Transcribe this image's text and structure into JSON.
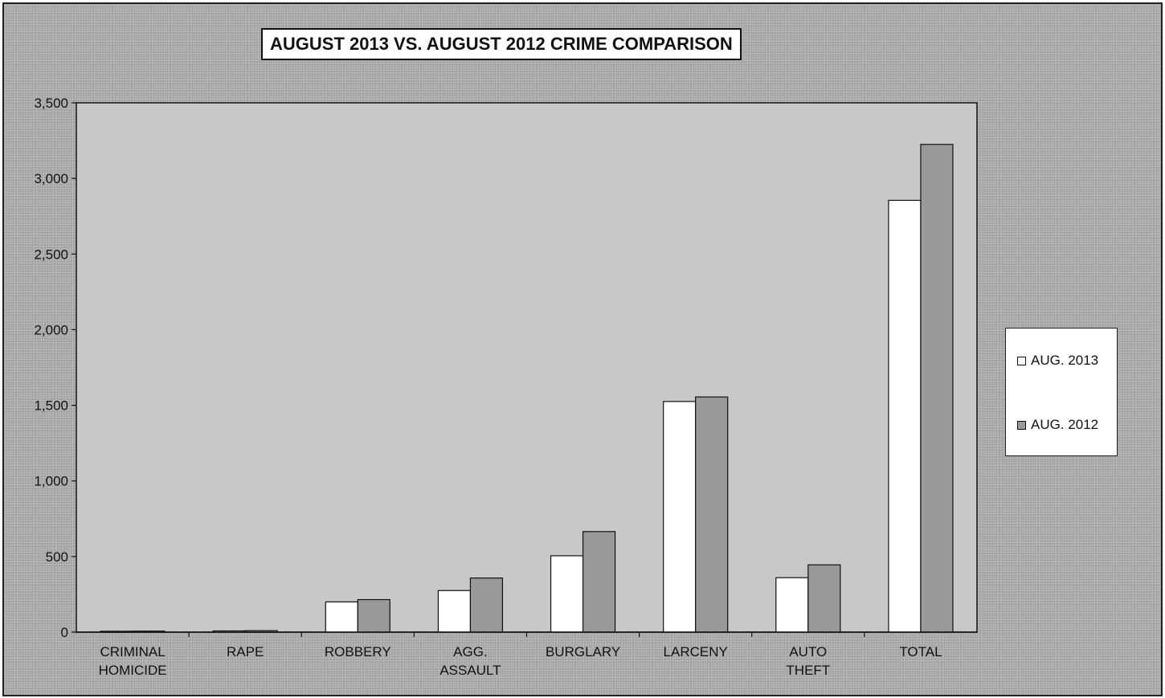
{
  "chart_data": {
    "type": "bar",
    "title": "AUGUST 2013 VS. AUGUST 2012 CRIME COMPARISON",
    "xlabel": "",
    "ylabel": "",
    "categories": [
      [
        "CRIMINAL",
        "HOMICIDE"
      ],
      [
        "RAPE"
      ],
      [
        "ROBBERY"
      ],
      [
        "AGG.",
        "ASSAULT"
      ],
      [
        "BURGLARY"
      ],
      [
        "LARCENY"
      ],
      [
        "AUTO",
        "THEFT"
      ],
      [
        "TOTAL"
      ]
    ],
    "series": [
      {
        "name": "AUG. 2013",
        "color": "#ffffff",
        "values": [
          6,
          8,
          200,
          275,
          505,
          1525,
          360,
          2855
        ]
      },
      {
        "name": "AUG. 2012",
        "color": "#999999",
        "values": [
          7,
          10,
          215,
          358,
          665,
          1555,
          445,
          3225
        ]
      }
    ],
    "ylim": [
      0,
      3500
    ],
    "yticks": [
      0,
      500,
      1000,
      1500,
      2000,
      2500,
      3000,
      3500
    ],
    "ytick_labels": [
      "0",
      "500",
      "1,000",
      "1,500",
      "2,000",
      "2,500",
      "3,000",
      "3,500"
    ],
    "grid": false,
    "legend_position": "right"
  }
}
